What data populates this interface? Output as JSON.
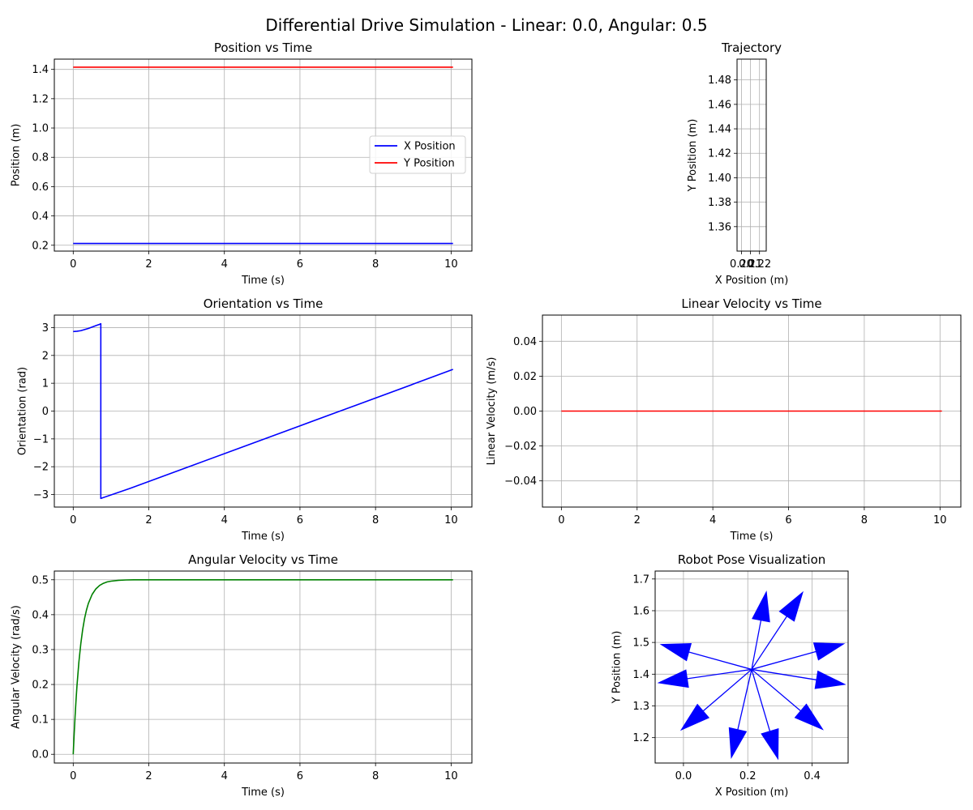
{
  "figure": {
    "title": "Differential Drive Simulation - Linear: 0.0, Angular: 0.5"
  },
  "chart_data": [
    {
      "id": "position",
      "type": "line",
      "title": "Position vs Time",
      "xlabel": "Time (s)",
      "ylabel": "Position (m)",
      "xlim": [
        -0.5,
        10.55
      ],
      "ylim": [
        0.16,
        1.47
      ],
      "xticks": [
        0,
        2,
        4,
        6,
        8,
        10
      ],
      "yticks": [
        0.2,
        0.4,
        0.6,
        0.8,
        1.0,
        1.2,
        1.4
      ],
      "ytick_labels": [
        "0.2",
        "0.4",
        "0.6",
        "0.8",
        "1.0",
        "1.2",
        "1.4"
      ],
      "grid": true,
      "legend": "center-right",
      "series": [
        {
          "name": "X Position",
          "color": "#0000ff",
          "x": [
            0,
            10.05
          ],
          "y": [
            0.212,
            0.212
          ]
        },
        {
          "name": "Y Position",
          "color": "#ff0000",
          "x": [
            0,
            10.05
          ],
          "y": [
            1.415,
            1.415
          ]
        }
      ]
    },
    {
      "id": "trajectory",
      "type": "line",
      "title": "Trajectory",
      "xlabel": "X Position (m)",
      "ylabel": "Y Position (m)",
      "xlim": [
        0.195,
        0.2275
      ],
      "ylim": [
        1.34,
        1.497
      ],
      "xticks": [
        0.2,
        0.21,
        0.22
      ],
      "xtick_labels": [
        "0.20",
        "0.21",
        "0.22"
      ],
      "yticks": [
        1.36,
        1.38,
        1.4,
        1.42,
        1.44,
        1.46,
        1.48
      ],
      "ytick_labels": [
        "1.36",
        "1.38",
        "1.40",
        "1.42",
        "1.44",
        "1.46",
        "1.48"
      ],
      "grid": true,
      "series": []
    },
    {
      "id": "orientation",
      "type": "line",
      "title": "Orientation vs Time",
      "xlabel": "Time (s)",
      "ylabel": "Orientation (rad)",
      "xlim": [
        -0.5,
        10.55
      ],
      "ylim": [
        -3.45,
        3.45
      ],
      "xticks": [
        0,
        2,
        4,
        6,
        8,
        10
      ],
      "yticks": [
        -3,
        -2,
        -1,
        0,
        1,
        2,
        3
      ],
      "ytick_labels": [
        "−3",
        "−2",
        "−1",
        "0",
        "1",
        "2",
        "3"
      ],
      "grid": true,
      "series": [
        {
          "color": "#0000ff",
          "x": [
            0.0,
            0.1,
            0.2,
            0.3,
            0.4,
            0.5,
            0.6,
            0.7,
            0.73,
            0.73,
            1.5,
            3.0,
            4.5,
            6.0,
            7.5,
            9.0,
            10.05
          ],
          "y": [
            2.86,
            2.87,
            2.89,
            2.93,
            2.97,
            3.02,
            3.07,
            3.12,
            3.14,
            -3.14,
            -2.78,
            -2.03,
            -1.28,
            -0.53,
            0.22,
            0.97,
            1.5
          ]
        }
      ]
    },
    {
      "id": "linear_velocity",
      "type": "line",
      "title": "Linear Velocity vs Time",
      "xlabel": "Time (s)",
      "ylabel": "Linear Velocity (m/s)",
      "xlim": [
        -0.5,
        10.55
      ],
      "ylim": [
        -0.055,
        0.055
      ],
      "xticks": [
        0,
        2,
        4,
        6,
        8,
        10
      ],
      "yticks": [
        -0.04,
        -0.02,
        0.0,
        0.02,
        0.04
      ],
      "ytick_labels": [
        "−0.04",
        "−0.02",
        "0.00",
        "0.02",
        "0.04"
      ],
      "grid": true,
      "series": [
        {
          "color": "#ff0000",
          "x": [
            0,
            10.05
          ],
          "y": [
            0.0,
            0.0
          ]
        }
      ]
    },
    {
      "id": "angular_velocity",
      "type": "line",
      "title": "Angular Velocity vs Time",
      "xlabel": "Time (s)",
      "ylabel": "Angular Velocity (rad/s)",
      "xlim": [
        -0.5,
        10.55
      ],
      "ylim": [
        -0.025,
        0.525
      ],
      "xticks": [
        0,
        2,
        4,
        6,
        8,
        10
      ],
      "yticks": [
        0.0,
        0.1,
        0.2,
        0.3,
        0.4,
        0.5
      ],
      "ytick_labels": [
        "0.0",
        "0.1",
        "0.2",
        "0.3",
        "0.4",
        "0.5"
      ],
      "grid": true,
      "series": [
        {
          "color": "#008000",
          "x": [
            0.0,
            0.025,
            0.05,
            0.075,
            0.1,
            0.15,
            0.2,
            0.25,
            0.3,
            0.35,
            0.4,
            0.5,
            0.6,
            0.7,
            0.8,
            0.9,
            1.0,
            1.2,
            1.4,
            1.6,
            2.0,
            3.0,
            5.0,
            7.5,
            10.05
          ],
          "y": [
            0.0,
            0.058,
            0.11,
            0.156,
            0.197,
            0.264,
            0.316,
            0.357,
            0.389,
            0.413,
            0.432,
            0.458,
            0.474,
            0.484,
            0.49,
            0.494,
            0.496,
            0.4985,
            0.4995,
            0.4998,
            0.5,
            0.5,
            0.5,
            0.5,
            0.5
          ]
        }
      ]
    },
    {
      "id": "pose",
      "type": "scatter",
      "title": "Robot Pose Visualization",
      "xlabel": "X Position (m)",
      "ylabel": "Y Position (m)",
      "xlim": [
        -0.088,
        0.512
      ],
      "ylim": [
        1.12,
        1.725
      ],
      "xticks": [
        0.0,
        0.2,
        0.4
      ],
      "xtick_labels": [
        "0.0",
        "0.2",
        "0.4"
      ],
      "yticks": [
        1.2,
        1.3,
        1.4,
        1.5,
        1.6,
        1.7
      ],
      "ytick_labels": [
        "1.2",
        "1.3",
        "1.4",
        "1.5",
        "1.6",
        "1.7"
      ],
      "grid": true,
      "arrow_color": "#0000ff",
      "origin": [
        0.212,
        1.415
      ],
      "arrows": [
        {
          "tip": [
            0.255,
            1.645
          ]
        },
        {
          "tip": [
            0.363,
            1.646
          ]
        },
        {
          "tip": [
            0.485,
            1.492
          ]
        },
        {
          "tip": [
            0.488,
            1.37
          ]
        },
        {
          "tip": [
            0.422,
            1.235
          ]
        },
        {
          "tip": [
            0.29,
            1.147
          ]
        },
        {
          "tip": [
            0.152,
            1.151
          ]
        },
        {
          "tip": [
            0.004,
            1.234
          ]
        },
        {
          "tip": [
            -0.063,
            1.375
          ]
        },
        {
          "tip": [
            -0.056,
            1.49
          ]
        }
      ]
    }
  ]
}
